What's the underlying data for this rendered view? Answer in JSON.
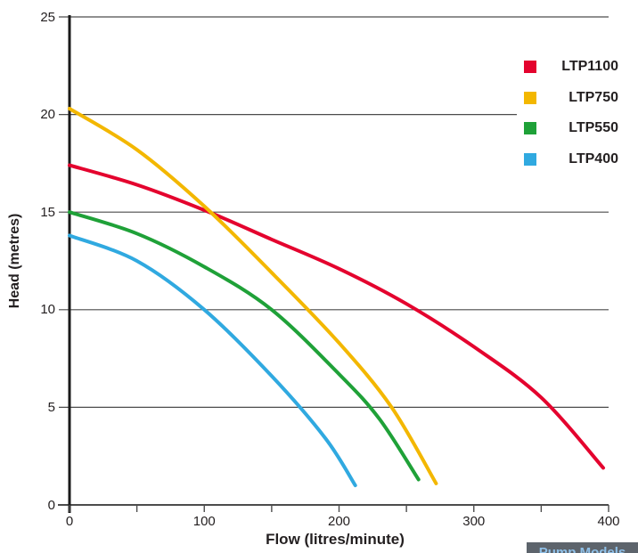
{
  "chart_data": {
    "type": "line",
    "title": "",
    "xlabel": "Flow (litres/minute)",
    "ylabel": "Head (metres)",
    "xlim": [
      0,
      400
    ],
    "ylim": [
      0,
      25
    ],
    "x_ticks": [
      0,
      100,
      200,
      300,
      400
    ],
    "x_minor_ticks": [
      50,
      150,
      250,
      350
    ],
    "y_ticks": [
      0,
      5,
      10,
      15,
      20,
      25
    ],
    "grid": "horizontal",
    "legend_position": "top-right",
    "axis_color": "#1a1a1a",
    "gridline_color": "#4c4c4c",
    "series": [
      {
        "name": "LTP1100",
        "color": "#e4032e",
        "points": [
          [
            0,
            17.4
          ],
          [
            50,
            16.4
          ],
          [
            100,
            15.1
          ],
          [
            150,
            13.6
          ],
          [
            200,
            12.1
          ],
          [
            250,
            10.3
          ],
          [
            300,
            8.1
          ],
          [
            350,
            5.5
          ],
          [
            396,
            1.9
          ]
        ]
      },
      {
        "name": "LTP750",
        "color": "#f3b700",
        "points": [
          [
            0,
            20.3
          ],
          [
            50,
            18.2
          ],
          [
            100,
            15.3
          ],
          [
            150,
            11.9
          ],
          [
            200,
            8.3
          ],
          [
            239,
            5.0
          ],
          [
            272,
            1.1
          ]
        ]
      },
      {
        "name": "LTP550",
        "color": "#1fa138",
        "points": [
          [
            0,
            15.0
          ],
          [
            50,
            13.9
          ],
          [
            100,
            12.2
          ],
          [
            150,
            10.0
          ],
          [
            200,
            6.7
          ],
          [
            230,
            4.4
          ],
          [
            259,
            1.3
          ]
        ]
      },
      {
        "name": "LTP400",
        "color": "#30a9e0",
        "points": [
          [
            0,
            13.8
          ],
          [
            50,
            12.5
          ],
          [
            100,
            10.0
          ],
          [
            150,
            6.6
          ],
          [
            190,
            3.4
          ],
          [
            212,
            1.0
          ]
        ]
      }
    ]
  },
  "badge": {
    "label": "Pump Models",
    "background": "#5d646c",
    "text_color": "#8fc0e8"
  }
}
